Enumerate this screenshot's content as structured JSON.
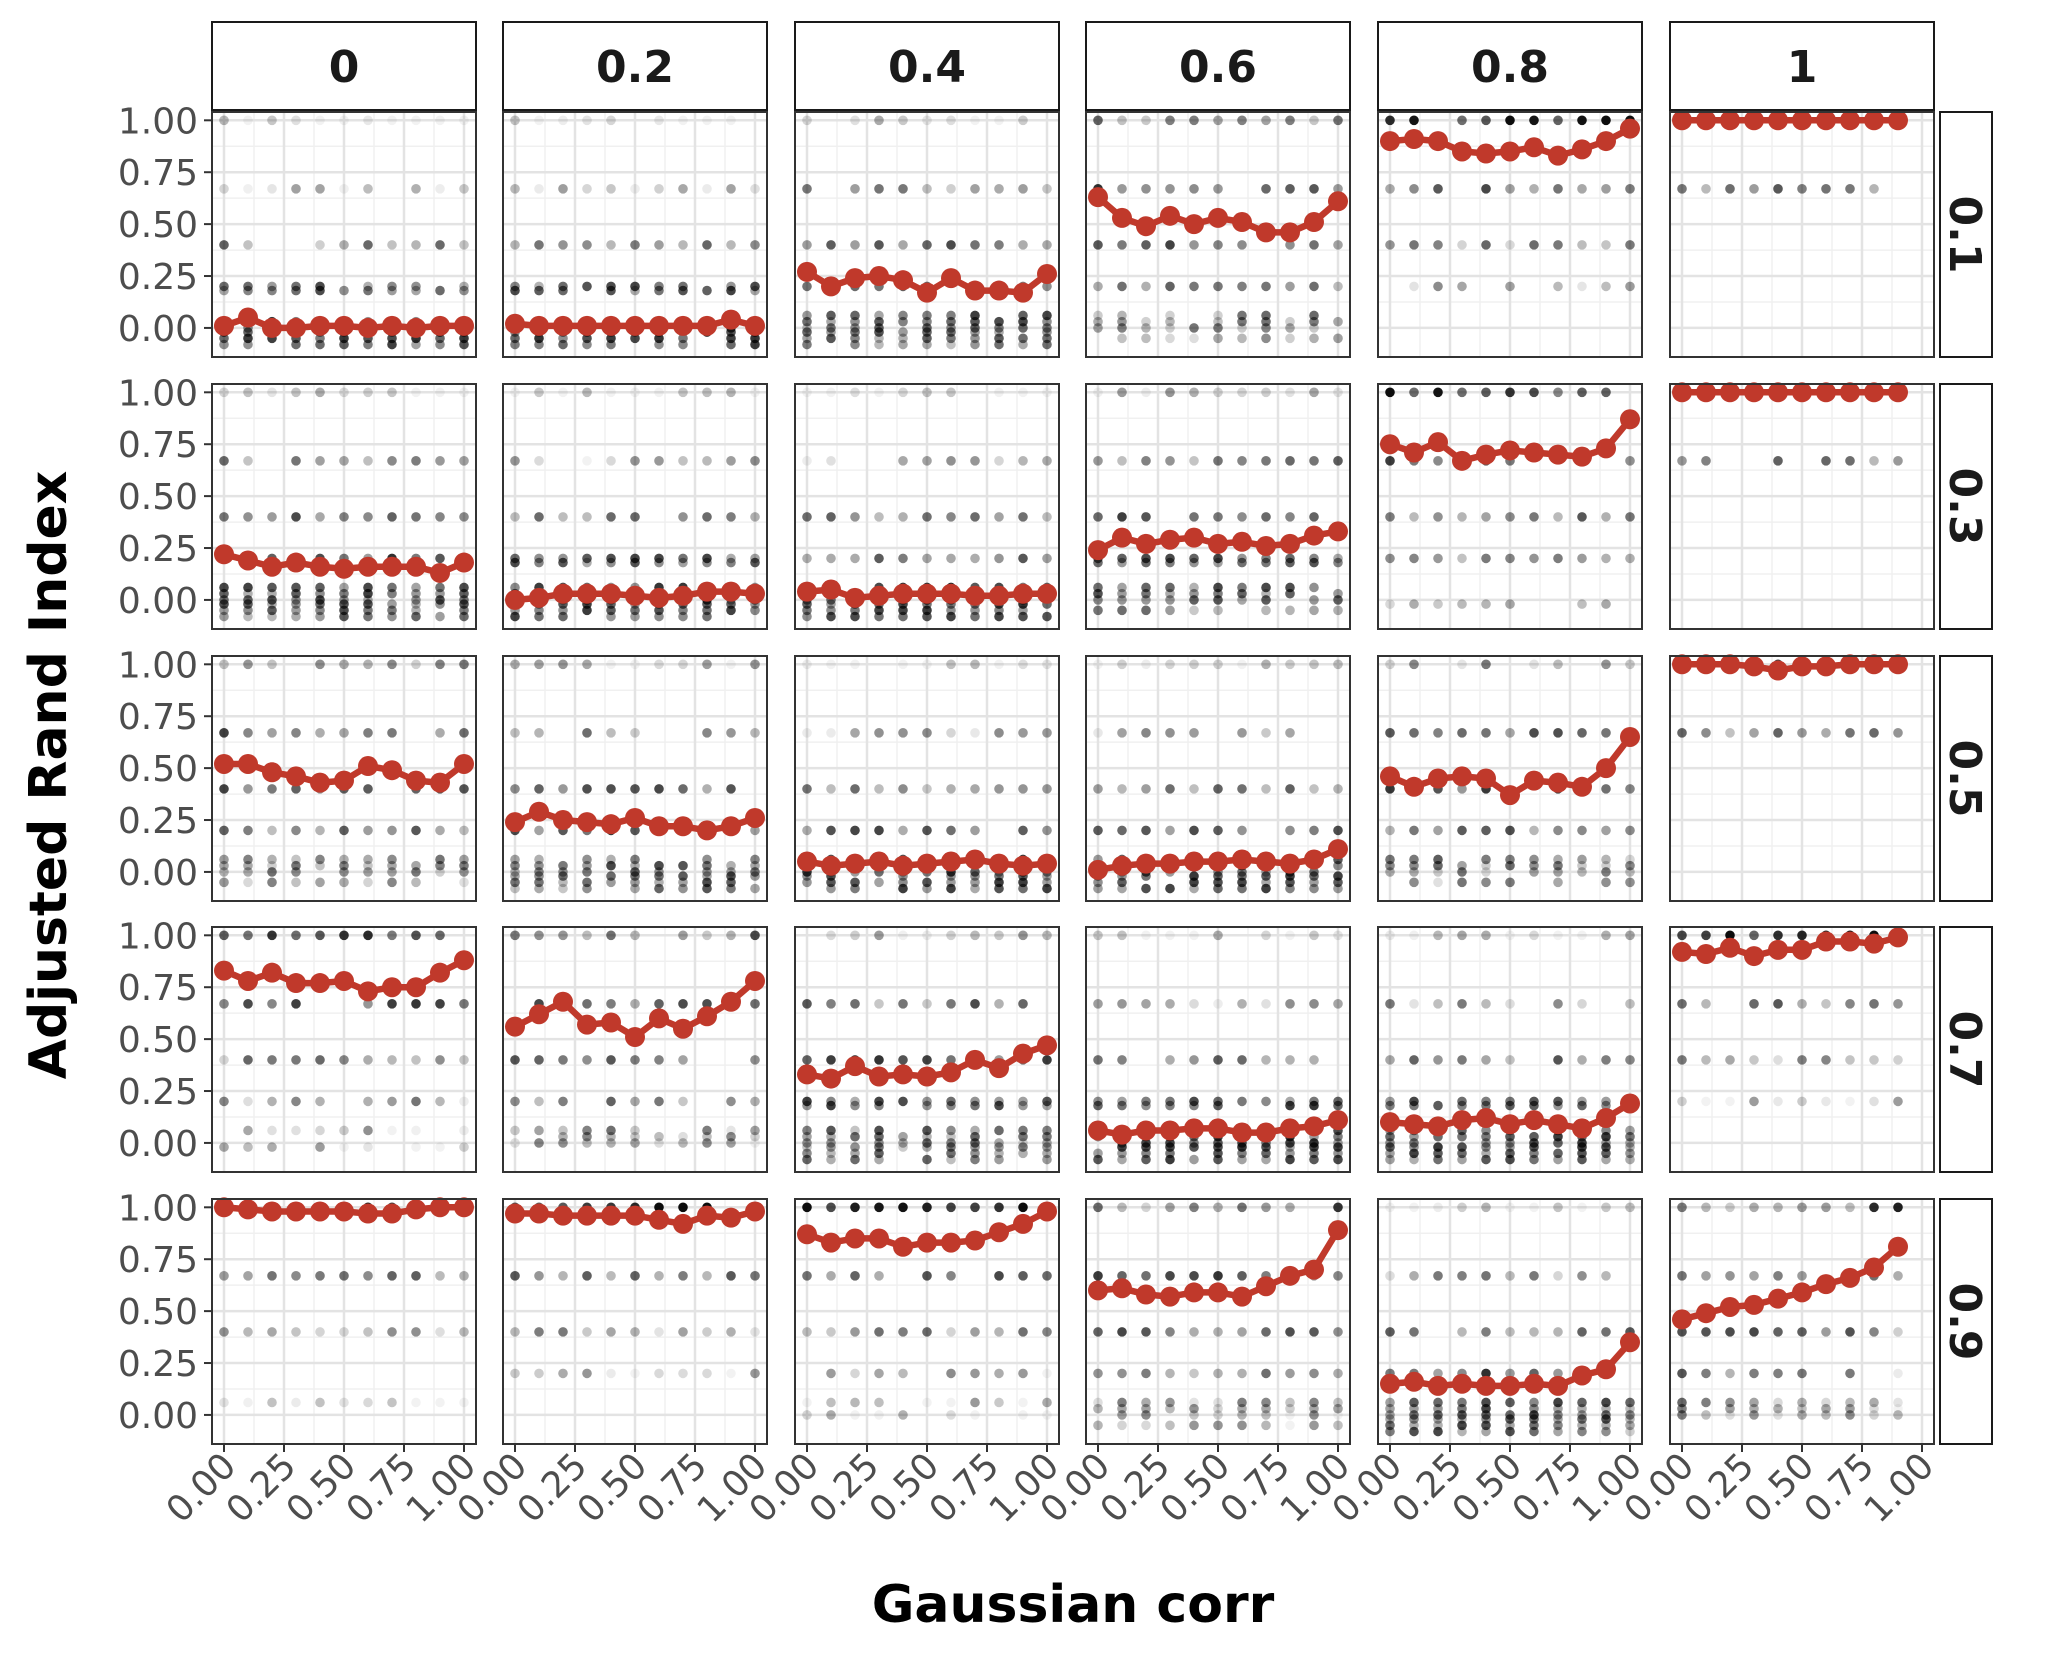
{
  "chart_data": {
    "type": "scatter",
    "xlabel": "Gaussian corr",
    "ylabel": "Adjusted Rand Index",
    "col_facets": [
      "0",
      "0.2",
      "0.4",
      "0.6",
      "0.8",
      "1"
    ],
    "row_facets": [
      "0.1",
      "0.3",
      "0.5",
      "0.7",
      "0.9"
    ],
    "x_ticks": [
      0.0,
      0.25,
      0.5,
      0.75,
      1.0
    ],
    "x_tick_labels": [
      "0.00",
      "0.25",
      "0.50",
      "0.75",
      "1.00"
    ],
    "y_ticks": [
      0.0,
      0.25,
      0.5,
      0.75,
      1.0
    ],
    "y_tick_labels": [
      "0.00",
      "0.25",
      "0.50",
      "0.75",
      "1.00"
    ],
    "xlim": [
      -0.05,
      1.05
    ],
    "ylim": [
      -0.14,
      1.04
    ],
    "x": [
      0.0,
      0.1,
      0.2,
      0.3,
      0.4,
      0.5,
      0.6,
      0.7,
      0.8,
      0.9,
      1.0
    ],
    "grid": true,
    "mean_color": "#c0392b",
    "point_color": "#000000",
    "panels": [
      {
        "row": "0.1",
        "col": "0",
        "mean": [
          0.01,
          0.05,
          0.0,
          0.0,
          0.01,
          0.01,
          0.0,
          0.01,
          0.0,
          0.01,
          0.01
        ],
        "levels": [
          -0.08,
          -0.05,
          -0.02,
          0.0,
          0.03,
          0.18,
          0.2,
          0.4,
          0.67,
          1.0
        ]
      },
      {
        "row": "0.1",
        "col": "0.2",
        "mean": [
          0.02,
          0.01,
          0.01,
          0.01,
          0.01,
          0.01,
          0.01,
          0.01,
          0.01,
          0.04,
          0.01
        ],
        "levels": [
          -0.08,
          -0.05,
          -0.02,
          0.0,
          0.03,
          0.18,
          0.2,
          0.4,
          0.67,
          1.0
        ]
      },
      {
        "row": "0.1",
        "col": "0.4",
        "mean": [
          0.27,
          0.2,
          0.24,
          0.25,
          0.23,
          0.17,
          0.24,
          0.18,
          0.18,
          0.17,
          0.26
        ],
        "levels": [
          -0.08,
          -0.05,
          -0.02,
          0.0,
          0.03,
          0.06,
          0.2,
          0.4,
          0.67,
          1.0
        ]
      },
      {
        "row": "0.1",
        "col": "0.6",
        "mean": [
          0.63,
          0.53,
          0.49,
          0.54,
          0.5,
          0.53,
          0.51,
          0.46,
          0.46,
          0.51,
          0.61
        ],
        "levels": [
          -0.05,
          0.0,
          0.03,
          0.06,
          0.2,
          0.4,
          0.67,
          1.0
        ]
      },
      {
        "row": "0.1",
        "col": "0.8",
        "mean": [
          0.9,
          0.91,
          0.9,
          0.85,
          0.84,
          0.85,
          0.87,
          0.83,
          0.86,
          0.9,
          0.96
        ],
        "levels": [
          0.2,
          0.4,
          0.67,
          1.0
        ]
      },
      {
        "row": "0.1",
        "col": "1",
        "mean": [
          1.0,
          1.0,
          1.0,
          1.0,
          1.0,
          1.0,
          1.0,
          1.0,
          1.0,
          1.0
        ],
        "levels": [
          0.67,
          1.0
        ]
      },
      {
        "row": "0.3",
        "col": "0",
        "mean": [
          0.22,
          0.19,
          0.16,
          0.18,
          0.16,
          0.15,
          0.16,
          0.16,
          0.16,
          0.13,
          0.18
        ],
        "levels": [
          -0.08,
          -0.05,
          -0.02,
          0.0,
          0.03,
          0.06,
          0.2,
          0.4,
          0.67,
          1.0
        ]
      },
      {
        "row": "0.3",
        "col": "0.2",
        "mean": [
          0.0,
          0.01,
          0.03,
          0.03,
          0.03,
          0.02,
          0.01,
          0.02,
          0.04,
          0.04,
          0.03
        ],
        "levels": [
          -0.08,
          -0.05,
          -0.02,
          0.0,
          0.03,
          0.06,
          0.18,
          0.2,
          0.4,
          0.67,
          1.0
        ]
      },
      {
        "row": "0.3",
        "col": "0.4",
        "mean": [
          0.04,
          0.05,
          0.01,
          0.02,
          0.03,
          0.03,
          0.03,
          0.02,
          0.02,
          0.03,
          0.03
        ],
        "levels": [
          -0.08,
          -0.05,
          -0.02,
          0.0,
          0.03,
          0.06,
          0.2,
          0.4,
          0.67,
          1.0
        ]
      },
      {
        "row": "0.3",
        "col": "0.6",
        "mean": [
          0.24,
          0.3,
          0.27,
          0.29,
          0.3,
          0.27,
          0.28,
          0.26,
          0.27,
          0.31,
          0.33
        ],
        "levels": [
          -0.05,
          0.0,
          0.03,
          0.06,
          0.18,
          0.2,
          0.4,
          0.67,
          1.0
        ]
      },
      {
        "row": "0.3",
        "col": "0.8",
        "mean": [
          0.75,
          0.71,
          0.76,
          0.67,
          0.7,
          0.72,
          0.71,
          0.7,
          0.69,
          0.73,
          0.87
        ],
        "levels": [
          -0.02,
          0.2,
          0.4,
          0.67,
          1.0
        ]
      },
      {
        "row": "0.3",
        "col": "1",
        "mean": [
          1.0,
          1.0,
          1.0,
          1.0,
          1.0,
          1.0,
          1.0,
          1.0,
          1.0,
          1.0
        ],
        "levels": [
          0.67,
          1.0
        ]
      },
      {
        "row": "0.5",
        "col": "0",
        "mean": [
          0.52,
          0.52,
          0.48,
          0.46,
          0.43,
          0.44,
          0.51,
          0.49,
          0.44,
          0.43,
          0.52
        ],
        "levels": [
          -0.05,
          0.0,
          0.03,
          0.06,
          0.2,
          0.4,
          0.67,
          1.0
        ]
      },
      {
        "row": "0.5",
        "col": "0.2",
        "mean": [
          0.24,
          0.29,
          0.25,
          0.24,
          0.23,
          0.26,
          0.22,
          0.22,
          0.2,
          0.22,
          0.26
        ],
        "levels": [
          -0.08,
          -0.05,
          -0.02,
          0.0,
          0.03,
          0.06,
          0.2,
          0.4,
          0.67,
          1.0
        ]
      },
      {
        "row": "0.5",
        "col": "0.4",
        "mean": [
          0.05,
          0.03,
          0.04,
          0.05,
          0.03,
          0.04,
          0.05,
          0.06,
          0.04,
          0.03,
          0.04
        ],
        "levels": [
          -0.08,
          -0.05,
          -0.02,
          0.0,
          0.03,
          0.06,
          0.2,
          0.4,
          0.67,
          1.0
        ]
      },
      {
        "row": "0.5",
        "col": "0.6",
        "mean": [
          0.01,
          0.03,
          0.04,
          0.04,
          0.05,
          0.05,
          0.06,
          0.05,
          0.04,
          0.06,
          0.11
        ],
        "levels": [
          -0.08,
          -0.05,
          -0.02,
          0.0,
          0.03,
          0.06,
          0.2,
          0.4,
          0.67,
          1.0
        ]
      },
      {
        "row": "0.5",
        "col": "0.8",
        "mean": [
          0.46,
          0.41,
          0.45,
          0.46,
          0.45,
          0.37,
          0.44,
          0.43,
          0.41,
          0.5,
          0.65
        ],
        "levels": [
          -0.05,
          0.0,
          0.03,
          0.06,
          0.2,
          0.4,
          0.67,
          1.0
        ]
      },
      {
        "row": "0.5",
        "col": "1",
        "mean": [
          1.0,
          1.0,
          1.0,
          0.99,
          0.97,
          0.99,
          0.99,
          1.0,
          1.0,
          1.0
        ],
        "levels": [
          0.67,
          1.0
        ]
      },
      {
        "row": "0.7",
        "col": "0",
        "mean": [
          0.83,
          0.78,
          0.82,
          0.77,
          0.77,
          0.78,
          0.73,
          0.75,
          0.75,
          0.82,
          0.88
        ],
        "levels": [
          -0.02,
          0.06,
          0.2,
          0.4,
          0.67,
          1.0
        ]
      },
      {
        "row": "0.7",
        "col": "0.2",
        "mean": [
          0.56,
          0.62,
          0.68,
          0.57,
          0.58,
          0.51,
          0.6,
          0.55,
          0.61,
          0.68,
          0.78
        ],
        "levels": [
          0.0,
          0.03,
          0.06,
          0.2,
          0.4,
          0.67,
          1.0
        ]
      },
      {
        "row": "0.7",
        "col": "0.4",
        "mean": [
          0.33,
          0.31,
          0.37,
          0.32,
          0.33,
          0.32,
          0.34,
          0.4,
          0.36,
          0.43,
          0.47
        ],
        "levels": [
          -0.08,
          -0.05,
          -0.02,
          0.0,
          0.03,
          0.06,
          0.18,
          0.2,
          0.4,
          0.67,
          1.0
        ]
      },
      {
        "row": "0.7",
        "col": "0.6",
        "mean": [
          0.06,
          0.04,
          0.06,
          0.06,
          0.07,
          0.07,
          0.05,
          0.05,
          0.07,
          0.08,
          0.11
        ],
        "levels": [
          -0.08,
          -0.05,
          -0.02,
          0.0,
          0.03,
          0.06,
          0.18,
          0.2,
          0.4,
          0.67,
          1.0
        ]
      },
      {
        "row": "0.7",
        "col": "0.8",
        "mean": [
          0.1,
          0.09,
          0.08,
          0.11,
          0.12,
          0.09,
          0.11,
          0.09,
          0.07,
          0.12,
          0.19
        ],
        "levels": [
          -0.08,
          -0.05,
          -0.02,
          0.0,
          0.03,
          0.06,
          0.18,
          0.2,
          0.4,
          0.67,
          1.0
        ]
      },
      {
        "row": "0.7",
        "col": "1",
        "mean": [
          0.92,
          0.91,
          0.94,
          0.9,
          0.93,
          0.93,
          0.97,
          0.97,
          0.96,
          0.99
        ],
        "levels": [
          0.2,
          0.4,
          0.67,
          1.0
        ]
      },
      {
        "row": "0.9",
        "col": "0",
        "mean": [
          1.0,
          0.99,
          0.98,
          0.98,
          0.98,
          0.98,
          0.97,
          0.97,
          0.99,
          1.0,
          1.0
        ],
        "levels": [
          0.06,
          0.4,
          0.67,
          1.0
        ]
      },
      {
        "row": "0.9",
        "col": "0.2",
        "mean": [
          0.97,
          0.97,
          0.96,
          0.96,
          0.96,
          0.96,
          0.94,
          0.92,
          0.96,
          0.95,
          0.98
        ],
        "levels": [
          0.2,
          0.4,
          0.67,
          1.0
        ]
      },
      {
        "row": "0.9",
        "col": "0.4",
        "mean": [
          0.87,
          0.83,
          0.85,
          0.85,
          0.81,
          0.83,
          0.83,
          0.84,
          0.88,
          0.92,
          0.98
        ],
        "levels": [
          0.0,
          0.06,
          0.2,
          0.4,
          0.67,
          1.0
        ]
      },
      {
        "row": "0.9",
        "col": "0.6",
        "mean": [
          0.6,
          0.61,
          0.58,
          0.57,
          0.59,
          0.59,
          0.57,
          0.62,
          0.67,
          0.7,
          0.89
        ],
        "levels": [
          -0.05,
          0.0,
          0.03,
          0.06,
          0.2,
          0.4,
          0.67,
          1.0
        ]
      },
      {
        "row": "0.9",
        "col": "0.8",
        "mean": [
          0.15,
          0.16,
          0.14,
          0.15,
          0.14,
          0.14,
          0.15,
          0.14,
          0.19,
          0.22,
          0.35
        ],
        "levels": [
          -0.08,
          -0.05,
          -0.02,
          0.0,
          0.03,
          0.06,
          0.2,
          0.4,
          0.67,
          1.0
        ]
      },
      {
        "row": "0.9",
        "col": "1",
        "mean": [
          0.46,
          0.49,
          0.52,
          0.53,
          0.56,
          0.59,
          0.63,
          0.66,
          0.71,
          0.81
        ],
        "levels": [
          0.0,
          0.03,
          0.06,
          0.2,
          0.4,
          0.67,
          1.0
        ]
      }
    ]
  }
}
